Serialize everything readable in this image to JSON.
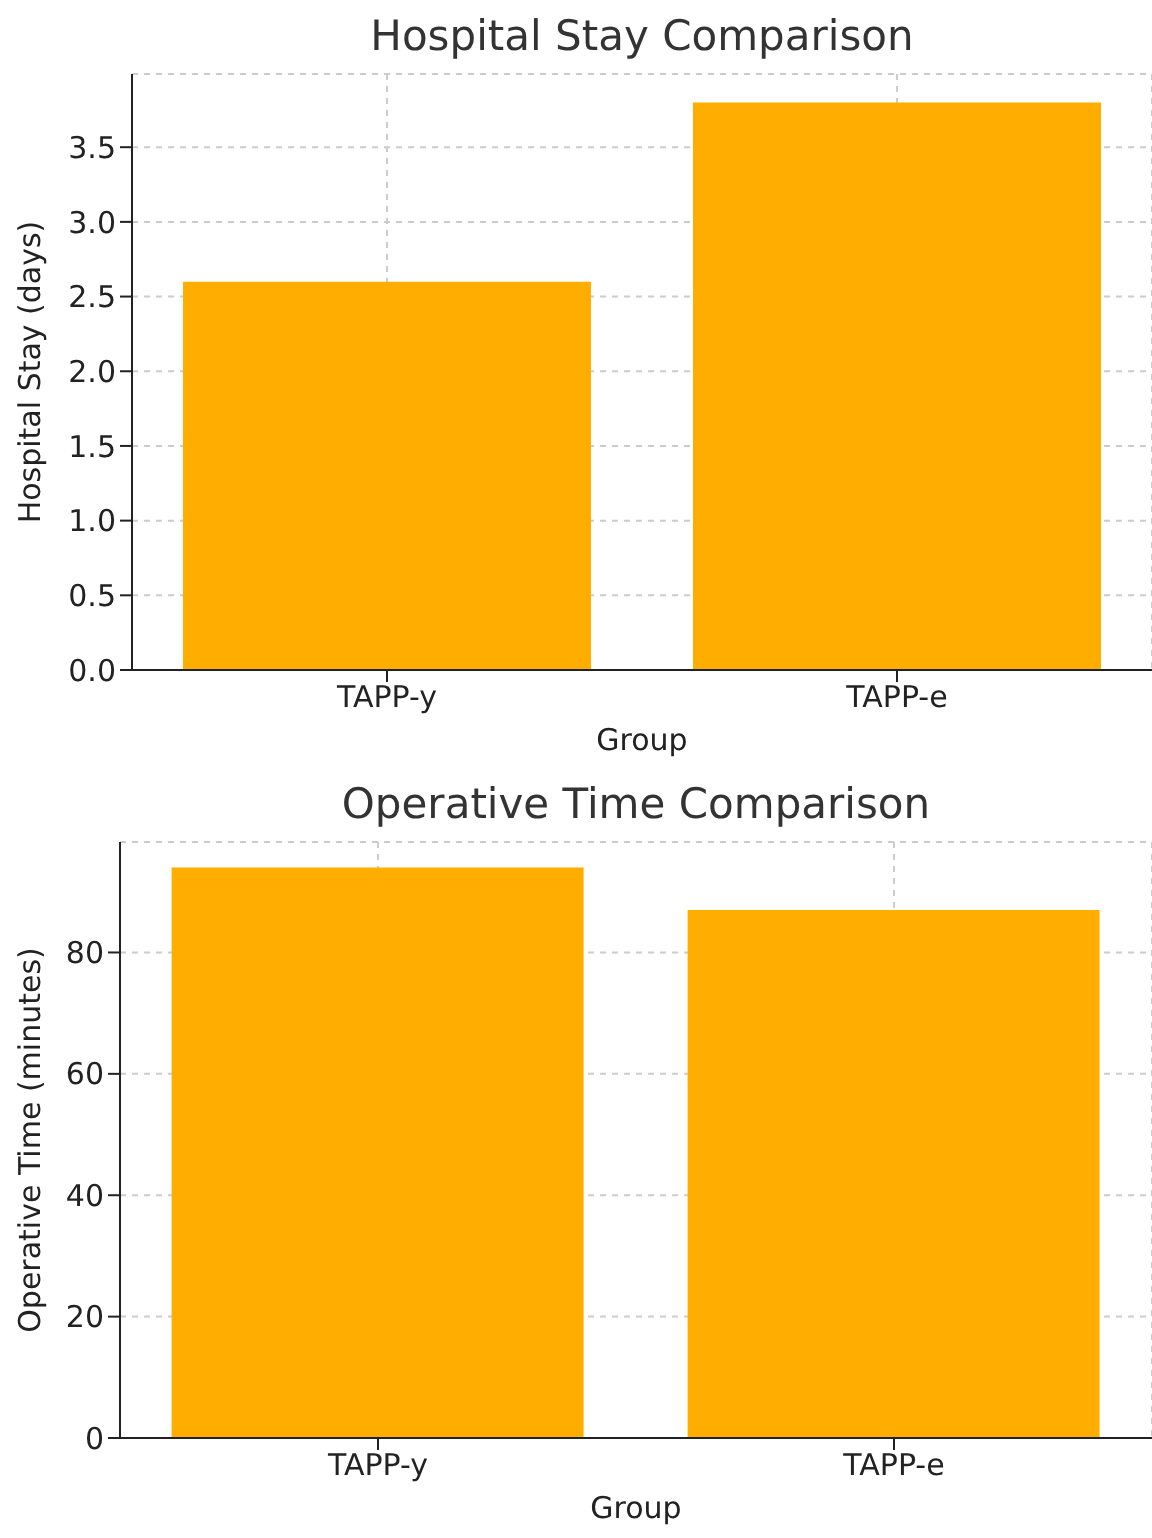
{
  "chart_data": [
    {
      "type": "bar",
      "title": "Hospital Stay Comparison",
      "xlabel": "Group",
      "ylabel": "Hospital Stay (days)",
      "categories": [
        "TAPP-y",
        "TAPP-e"
      ],
      "values": [
        2.6,
        3.8
      ],
      "color": "#ffae00",
      "ylim": [
        0,
        3.99
      ],
      "yticks": [
        {
          "value": 0,
          "label": "0.0"
        },
        0.5,
        {
          "value": 1,
          "label": "1.0"
        },
        1.5,
        {
          "value": 2,
          "label": "2.0"
        },
        2.5,
        {
          "value": 3,
          "label": "3.0"
        },
        3.5
      ],
      "grid": true
    },
    {
      "type": "bar",
      "title": "Operative Time Comparison",
      "xlabel": "Group",
      "ylabel": "Operative Time (minutes)",
      "categories": [
        "TAPP-y",
        "TAPP-e"
      ],
      "values": [
        94,
        87
      ],
      "color": "#ffae00",
      "ylim": [
        0,
        98.2
      ],
      "yticks": [
        0,
        20,
        40,
        60,
        80
      ],
      "grid": true
    }
  ]
}
